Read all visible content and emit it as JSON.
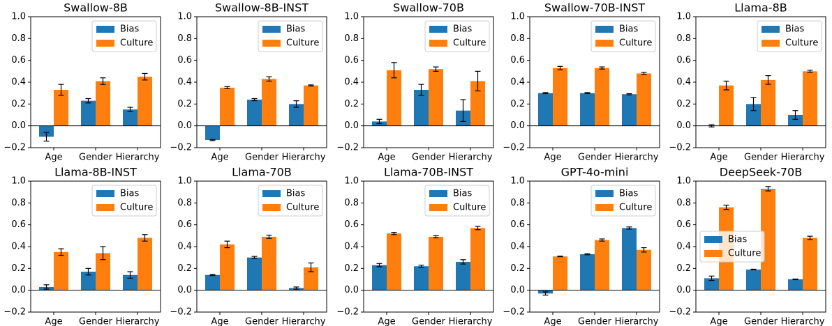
{
  "chart_data": [
    {
      "type": "bar",
      "title": "Swallow-8B",
      "categories": [
        "Age",
        "Gender",
        "Hierarchy"
      ],
      "series": [
        {
          "name": "Bias",
          "color": "#1f77b4",
          "values": [
            -0.1,
            0.23,
            0.15
          ],
          "errors": [
            0.04,
            0.02,
            0.02
          ]
        },
        {
          "name": "Culture",
          "color": "#ff7f0e",
          "values": [
            0.33,
            0.41,
            0.45
          ],
          "errors": [
            0.05,
            0.03,
            0.03
          ]
        }
      ],
      "ylim": [
        -0.2,
        1.0
      ],
      "yticks": [
        {
          "value": -0.2,
          "label": "−0.2"
        },
        {
          "value": 0,
          "label": "0.0"
        },
        0.2,
        0.4,
        0.6,
        0.8,
        {
          "value": 1,
          "label": "1.0"
        }
      ],
      "legend": "upper right"
    },
    {
      "type": "bar",
      "title": "Swallow-8B-INST",
      "categories": [
        "Age",
        "Gender",
        "Hierarchy"
      ],
      "series": [
        {
          "name": "Bias",
          "color": "#1f77b4",
          "values": [
            -0.13,
            0.24,
            0.2
          ],
          "errors": [
            0.005,
            0.01,
            0.03
          ]
        },
        {
          "name": "Culture",
          "color": "#ff7f0e",
          "values": [
            0.35,
            0.43,
            0.37
          ],
          "errors": [
            0.01,
            0.02,
            0.005
          ]
        }
      ],
      "ylim": [
        -0.2,
        1.0
      ],
      "yticks": [
        {
          "value": -0.2,
          "label": "−0.2"
        },
        {
          "value": 0,
          "label": "0.0"
        },
        0.2,
        0.4,
        0.6,
        0.8,
        {
          "value": 1,
          "label": "1.0"
        }
      ],
      "legend": "upper right"
    },
    {
      "type": "bar",
      "title": "Swallow-70B",
      "categories": [
        "Age",
        "Gender",
        "Hierarchy"
      ],
      "series": [
        {
          "name": "Bias",
          "color": "#1f77b4",
          "values": [
            0.04,
            0.33,
            0.14
          ],
          "errors": [
            0.02,
            0.05,
            0.1
          ]
        },
        {
          "name": "Culture",
          "color": "#ff7f0e",
          "values": [
            0.51,
            0.52,
            0.41
          ],
          "errors": [
            0.07,
            0.02,
            0.09
          ]
        }
      ],
      "ylim": [
        -0.2,
        1.0
      ],
      "yticks": [
        {
          "value": -0.2,
          "label": "−0.2"
        },
        {
          "value": 0,
          "label": "0.0"
        },
        0.2,
        0.4,
        0.6,
        0.8,
        {
          "value": 1,
          "label": "1.0"
        }
      ],
      "legend": "upper right"
    },
    {
      "type": "bar",
      "title": "Swallow-70B-INST",
      "categories": [
        "Age",
        "Gender",
        "Hierarchy"
      ],
      "series": [
        {
          "name": "Bias",
          "color": "#1f77b4",
          "values": [
            0.3,
            0.3,
            0.29
          ],
          "errors": [
            0.005,
            0.005,
            0.005
          ]
        },
        {
          "name": "Culture",
          "color": "#ff7f0e",
          "values": [
            0.53,
            0.53,
            0.48
          ],
          "errors": [
            0.015,
            0.01,
            0.01
          ]
        }
      ],
      "ylim": [
        -0.2,
        1.0
      ],
      "yticks": [
        {
          "value": -0.2,
          "label": "−0.2"
        },
        {
          "value": 0,
          "label": "0.0"
        },
        0.2,
        0.4,
        0.6,
        0.8,
        {
          "value": 1,
          "label": "1.0"
        }
      ],
      "legend": "upper right"
    },
    {
      "type": "bar",
      "title": "Llama-8B",
      "categories": [
        "Age",
        "Gender",
        "Hierarchy"
      ],
      "series": [
        {
          "name": "Bias",
          "color": "#1f77b4",
          "values": [
            0.0,
            0.2,
            0.1
          ],
          "errors": [
            0.01,
            0.06,
            0.04
          ]
        },
        {
          "name": "Culture",
          "color": "#ff7f0e",
          "values": [
            0.37,
            0.42,
            0.5
          ],
          "errors": [
            0.04,
            0.04,
            0.01
          ]
        }
      ],
      "ylim": [
        -0.2,
        1.0
      ],
      "yticks": [
        {
          "value": -0.2,
          "label": "−0.2"
        },
        {
          "value": 0,
          "label": "0.0"
        },
        0.2,
        0.4,
        0.6,
        0.8,
        {
          "value": 1,
          "label": "1.0"
        }
      ],
      "legend": "upper right"
    },
    {
      "type": "bar",
      "title": "Llama-8B-INST",
      "categories": [
        "Age",
        "Gender",
        "Hierarchy"
      ],
      "series": [
        {
          "name": "Bias",
          "color": "#1f77b4",
          "values": [
            0.03,
            0.17,
            0.14
          ],
          "errors": [
            0.02,
            0.03,
            0.03
          ]
        },
        {
          "name": "Culture",
          "color": "#ff7f0e",
          "values": [
            0.35,
            0.34,
            0.48
          ],
          "errors": [
            0.03,
            0.06,
            0.03
          ]
        }
      ],
      "ylim": [
        -0.2,
        1.0
      ],
      "yticks": [
        {
          "value": -0.2,
          "label": "−0.2"
        },
        {
          "value": 0,
          "label": "0.0"
        },
        0.2,
        0.4,
        0.6,
        0.8,
        {
          "value": 1,
          "label": "1.0"
        }
      ],
      "legend": "upper right"
    },
    {
      "type": "bar",
      "title": "Llama-70B",
      "categories": [
        "Age",
        "Gender",
        "Hierarchy"
      ],
      "series": [
        {
          "name": "Bias",
          "color": "#1f77b4",
          "values": [
            0.14,
            0.3,
            0.02
          ],
          "errors": [
            0.005,
            0.01,
            0.01
          ]
        },
        {
          "name": "Culture",
          "color": "#ff7f0e",
          "values": [
            0.42,
            0.49,
            0.21
          ],
          "errors": [
            0.03,
            0.015,
            0.04
          ]
        }
      ],
      "ylim": [
        -0.2,
        1.0
      ],
      "yticks": [
        {
          "value": -0.2,
          "label": "−0.2"
        },
        {
          "value": 0,
          "label": "0.0"
        },
        0.2,
        0.4,
        0.6,
        0.8,
        {
          "value": 1,
          "label": "1.0"
        }
      ],
      "legend": "upper right"
    },
    {
      "type": "bar",
      "title": "Llama-70B-INST",
      "categories": [
        "Age",
        "Gender",
        "Hierarchy"
      ],
      "series": [
        {
          "name": "Bias",
          "color": "#1f77b4",
          "values": [
            0.23,
            0.22,
            0.26
          ],
          "errors": [
            0.015,
            0.01,
            0.02
          ]
        },
        {
          "name": "Culture",
          "color": "#ff7f0e",
          "values": [
            0.52,
            0.49,
            0.57
          ],
          "errors": [
            0.01,
            0.01,
            0.015
          ]
        }
      ],
      "ylim": [
        -0.2,
        1.0
      ],
      "yticks": [
        {
          "value": -0.2,
          "label": "−0.2"
        },
        {
          "value": 0,
          "label": "0.0"
        },
        0.2,
        0.4,
        0.6,
        0.8,
        {
          "value": 1,
          "label": "1.0"
        }
      ],
      "legend": "upper right"
    },
    {
      "type": "bar",
      "title": "GPT-4o-mini",
      "categories": [
        "Age",
        "Gender",
        "Hierarchy"
      ],
      "series": [
        {
          "name": "Bias",
          "color": "#1f77b4",
          "values": [
            -0.03,
            0.33,
            0.57
          ],
          "errors": [
            0.015,
            0.005,
            0.01
          ]
        },
        {
          "name": "Culture",
          "color": "#ff7f0e",
          "values": [
            0.31,
            0.46,
            0.37
          ],
          "errors": [
            0.003,
            0.01,
            0.02
          ]
        }
      ],
      "ylim": [
        -0.2,
        1.0
      ],
      "yticks": [
        {
          "value": -0.2,
          "label": "−0.2"
        },
        {
          "value": 0,
          "label": "0.0"
        },
        0.2,
        0.4,
        0.6,
        0.8,
        {
          "value": 1,
          "label": "1.0"
        }
      ],
      "legend": "upper right"
    },
    {
      "type": "bar",
      "title": "DeepSeek-70B",
      "categories": [
        "Age",
        "Gender",
        "Hierarchy"
      ],
      "series": [
        {
          "name": "Bias",
          "color": "#1f77b4",
          "values": [
            0.11,
            0.19,
            0.1
          ],
          "errors": [
            0.02,
            0.003,
            0.003
          ]
        },
        {
          "name": "Culture",
          "color": "#ff7f0e",
          "values": [
            0.76,
            0.93,
            0.48
          ],
          "errors": [
            0.02,
            0.02,
            0.015
          ]
        }
      ],
      "ylim": [
        -0.2,
        1.0
      ],
      "yticks": [
        {
          "value": -0.2,
          "label": "−0.2"
        },
        {
          "value": 0,
          "label": "0.0"
        },
        0.2,
        0.4,
        0.6,
        0.8,
        {
          "value": 1,
          "label": "1.0"
        }
      ],
      "legend": "center left"
    }
  ]
}
